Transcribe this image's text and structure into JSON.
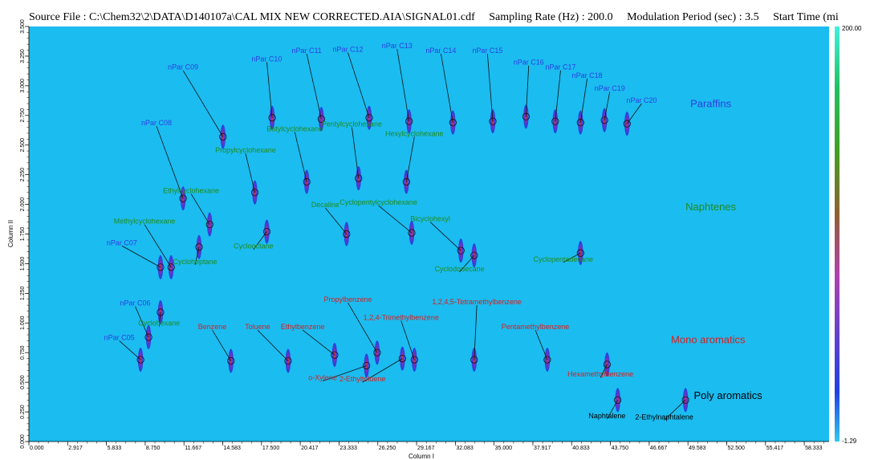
{
  "header": {
    "source": "Source File : C:\\Chem32\\2\\DATA\\D140107a\\CAL MIX NEW CORRECTED.AIA\\SIGNAL01.cdf",
    "sampling": "Sampling Rate (Hz) : 200.0",
    "modulation": "Modulation Period (sec) : 3.5",
    "start": "Start Time (mi"
  },
  "chart_data": {
    "type": "scatter",
    "title": "",
    "xlabel": "Column I",
    "ylabel": "Column II",
    "xlim": [
      0,
      60.2
    ],
    "ylim": [
      0,
      3.5
    ],
    "x_ticks": [
      "0.000",
      "2.917",
      "5.833",
      "8.750",
      "11.667",
      "14.583",
      "17.500",
      "20.417",
      "23.333",
      "26.250",
      "29.167",
      "32.083",
      "35.000",
      "37.917",
      "40.833",
      "43.750",
      "46.667",
      "49.583",
      "52.500",
      "55.417",
      "58.333"
    ],
    "x_tick_values": [
      0,
      2.917,
      5.833,
      8.75,
      11.667,
      14.583,
      17.5,
      20.417,
      23.333,
      26.25,
      29.167,
      32.083,
      35,
      37.917,
      40.833,
      43.75,
      46.667,
      49.583,
      52.5,
      55.417,
      58.333
    ],
    "y_ticks": [
      "0.000",
      "0.250",
      "0.500",
      "0.750",
      "1.000",
      "1.250",
      "1.500",
      "1.750",
      "2.000",
      "2.250",
      "2.500",
      "2.750",
      "3.000",
      "3.250",
      "3.500"
    ],
    "y_tick_values": [
      0,
      0.25,
      0.5,
      0.75,
      1.0,
      1.25,
      1.5,
      1.75,
      2.0,
      2.25,
      2.5,
      2.75,
      3.0,
      3.25,
      3.5
    ],
    "colorbar": {
      "max_label": "200.00",
      "min_label": "-1.29"
    },
    "groups": [
      {
        "label": "Paraffins",
        "x": 51.3,
        "y": 2.82,
        "color": "#2b3ee0"
      },
      {
        "label": "Naphtenes",
        "x": 51.3,
        "y": 1.95,
        "color": "#1e8c1e"
      },
      {
        "label": "Mono aromatics",
        "x": 51.1,
        "y": 0.83,
        "color": "#d62020"
      },
      {
        "label": "Poly aromatics",
        "x": 52.6,
        "y": 0.36,
        "color": "#000000"
      }
    ],
    "series": [
      {
        "name": "paraffins",
        "color": "#2b3ee0",
        "points": [
          {
            "label": "nPar C05",
            "x": 8.4,
            "y": 0.69,
            "lx": 6.8,
            "ly": 0.85
          },
          {
            "label": "nPar C06",
            "x": 9.0,
            "y": 0.88,
            "lx": 8.0,
            "ly": 1.14
          },
          {
            "label": "nPar C07",
            "x": 9.9,
            "y": 1.47,
            "lx": 7.0,
            "ly": 1.65
          },
          {
            "label": "nPar C08",
            "x": 11.6,
            "y": 2.05,
            "lx": 9.6,
            "ly": 2.66
          },
          {
            "label": "nPar C09",
            "x": 14.6,
            "y": 2.57,
            "lx": 11.6,
            "ly": 3.13
          },
          {
            "label": "nPar C10",
            "x": 18.3,
            "y": 2.73,
            "lx": 17.9,
            "ly": 3.2
          },
          {
            "label": "nPar C11",
            "x": 22.0,
            "y": 2.72,
            "lx": 20.9,
            "ly": 3.27
          },
          {
            "label": "nPar C12",
            "x": 25.6,
            "y": 2.73,
            "lx": 24.0,
            "ly": 3.28
          },
          {
            "label": "nPar C13",
            "x": 28.6,
            "y": 2.7,
            "lx": 27.7,
            "ly": 3.31
          },
          {
            "label": "nPar C14",
            "x": 31.9,
            "y": 2.69,
            "lx": 31.0,
            "ly": 3.27
          },
          {
            "label": "nPar C15",
            "x": 34.9,
            "y": 2.7,
            "lx": 34.5,
            "ly": 3.27
          },
          {
            "label": "nPar C16",
            "x": 37.4,
            "y": 2.74,
            "lx": 37.6,
            "ly": 3.17
          },
          {
            "label": "nPar C17",
            "x": 39.6,
            "y": 2.7,
            "lx": 40.0,
            "ly": 3.13
          },
          {
            "label": "nPar C18",
            "x": 41.5,
            "y": 2.69,
            "lx": 42.0,
            "ly": 3.06
          },
          {
            "label": "nPar C19",
            "x": 43.3,
            "y": 2.71,
            "lx": 43.7,
            "ly": 2.95
          },
          {
            "label": "nPar C20",
            "x": 45.0,
            "y": 2.68,
            "lx": 46.1,
            "ly": 2.85
          }
        ]
      },
      {
        "name": "naphtenes",
        "color": "#1e8c1e",
        "points": [
          {
            "label": "Methylcyclohexane",
            "x": 10.7,
            "y": 1.47,
            "lx": 8.7,
            "ly": 1.83
          },
          {
            "label": "Ethylcyclohexane",
            "x": 13.6,
            "y": 1.83,
            "lx": 12.2,
            "ly": 2.09
          },
          {
            "label": "Propylcyclohexane",
            "x": 17.0,
            "y": 2.1,
            "lx": 16.3,
            "ly": 2.43
          },
          {
            "label": "Butylcyclohexane",
            "x": 20.9,
            "y": 2.19,
            "lx": 20.0,
            "ly": 2.61
          },
          {
            "label": "Pentylcyclohexane",
            "x": 24.8,
            "y": 2.22,
            "lx": 24.3,
            "ly": 2.65
          },
          {
            "label": "Hexylcyclohexane",
            "x": 28.4,
            "y": 2.19,
            "lx": 29.0,
            "ly": 2.57
          },
          {
            "label": "Cycloheptane",
            "x": 12.8,
            "y": 1.64,
            "lx": 12.5,
            "ly": 1.49
          },
          {
            "label": "Cyclooctane",
            "x": 17.9,
            "y": 1.77,
            "lx": 16.9,
            "ly": 1.62
          },
          {
            "label": "Decaline",
            "x": 23.9,
            "y": 1.75,
            "lx": 22.3,
            "ly": 1.97
          },
          {
            "label": "Cyclopentylcyclohexane",
            "x": 28.8,
            "y": 1.76,
            "lx": 26.3,
            "ly": 1.99
          },
          {
            "label": "Bicyclohexyl",
            "x": 32.5,
            "y": 1.61,
            "lx": 30.2,
            "ly": 1.85
          },
          {
            "label": "Cyclododecane",
            "x": 33.5,
            "y": 1.57,
            "lx": 32.4,
            "ly": 1.43
          },
          {
            "label": "Cyclopentadecane",
            "x": 41.5,
            "y": 1.59,
            "lx": 40.2,
            "ly": 1.51
          },
          {
            "label": "Cyclohexane",
            "x": 9.9,
            "y": 1.09,
            "lx": 9.8,
            "ly": 0.97
          }
        ]
      },
      {
        "name": "mono aromatics",
        "color": "#d62020",
        "points": [
          {
            "label": "Benzene",
            "x": 15.2,
            "y": 0.68,
            "lx": 13.8,
            "ly": 0.94
          },
          {
            "label": "Toluene",
            "x": 19.5,
            "y": 0.68,
            "lx": 17.2,
            "ly": 0.94
          },
          {
            "label": "Ethylbenzene",
            "x": 23.0,
            "y": 0.73,
            "lx": 20.6,
            "ly": 0.94
          },
          {
            "label": "Propylbenzene",
            "x": 26.2,
            "y": 0.75,
            "lx": 24.0,
            "ly": 1.17
          },
          {
            "label": "1,2,4-Trimethylbenzene",
            "x": 29.0,
            "y": 0.69,
            "lx": 28.0,
            "ly": 1.02
          },
          {
            "label": "1,2,4,5-Tetramethylbenzene",
            "x": 33.5,
            "y": 0.69,
            "lx": 33.7,
            "ly": 1.15
          },
          {
            "label": "Pentamethylbenzene",
            "x": 39.0,
            "y": 0.69,
            "lx": 38.1,
            "ly": 0.94
          },
          {
            "label": "Hexamethylbenzene",
            "x": 43.5,
            "y": 0.65,
            "lx": 43.0,
            "ly": 0.54
          },
          {
            "label": "o-Xylene",
            "x": 25.4,
            "y": 0.64,
            "lx": 22.1,
            "ly": 0.51
          },
          {
            "label": "2-Ethyltoluene",
            "x": 28.1,
            "y": 0.7,
            "lx": 25.1,
            "ly": 0.5
          }
        ]
      },
      {
        "name": "poly aromatics",
        "color": "#000000",
        "points": [
          {
            "label": "Naphtalene",
            "x": 44.3,
            "y": 0.35,
            "lx": 43.5,
            "ly": 0.19
          },
          {
            "label": "2-Ethylnaphtalene",
            "x": 49.4,
            "y": 0.35,
            "lx": 47.8,
            "ly": 0.18
          }
        ]
      }
    ]
  }
}
